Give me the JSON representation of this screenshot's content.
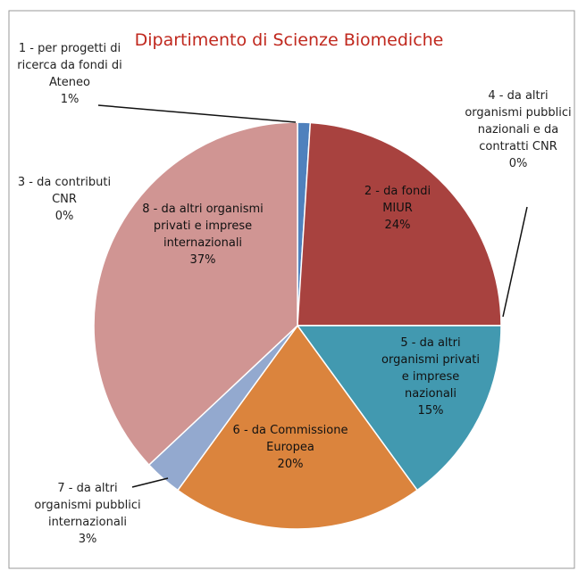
{
  "chart_data": {
    "type": "pie",
    "title": "Dipartimento di Scienze Biomediche",
    "categories": [
      "1 - per progetti di ricerca da fondi di Ateneo",
      "2 - da fondi MIUR",
      "3 - da contributi CNR",
      "4 - da altri organismi pubblici nazionali e da contratti CNR",
      "5 - da altri organismi privati e imprese nazionali",
      "6 - da Commissione Europea",
      "7 - da altri organismi pubblici internazionali",
      "8 - da altri organismi privati e imprese internazionali"
    ],
    "values": [
      1,
      24,
      0,
      0,
      15,
      20,
      3,
      37
    ],
    "value_labels": [
      "1%",
      "24%",
      "0%",
      "0%",
      "15%",
      "20%",
      "3%",
      "37%"
    ],
    "colors": [
      "#4f81bd",
      "#a8423f",
      "#9bbb59",
      "#8064a2",
      "#4299b0",
      "#db843d",
      "#93a9cf",
      "#d09593"
    ]
  }
}
